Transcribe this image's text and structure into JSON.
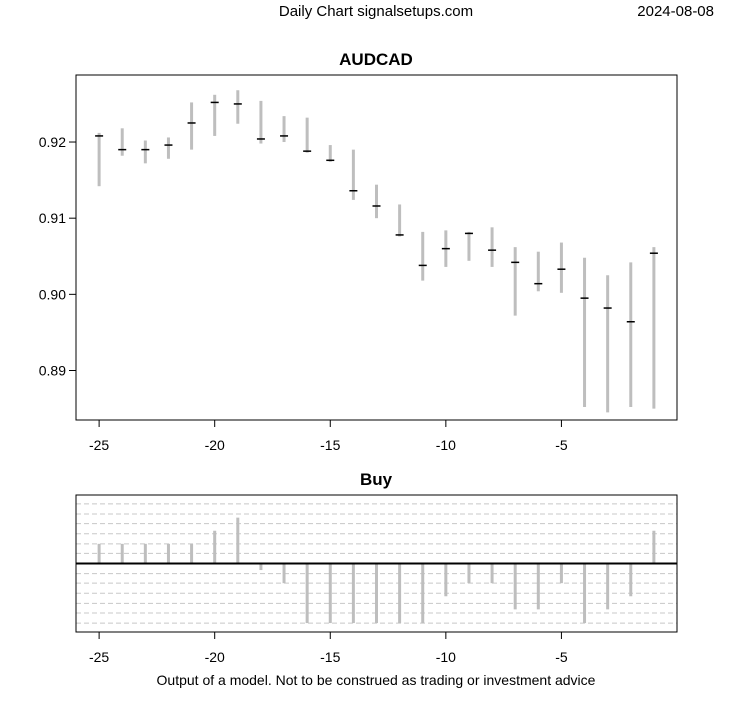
{
  "header": {
    "left": "Daily Chart signalsetups.com",
    "right": "2024-08-08"
  },
  "footer": "Output of a model. Not to be construed as trading or investment advice",
  "colors": {
    "bar": "#bebebe",
    "mark": "#000000",
    "grid": "#c8c8c8"
  },
  "chart_data": [
    {
      "type": "ohlc",
      "title": "AUDCAD",
      "xlim": [
        -26,
        0
      ],
      "ylim": [
        0.8835,
        0.9288
      ],
      "x_ticks": [
        -25,
        -20,
        -15,
        -10,
        -5
      ],
      "x_tick_labels": [
        "-25",
        "-20",
        "-15",
        "-10",
        "-5"
      ],
      "y_ticks": [
        0.89,
        0.9,
        0.91,
        0.92
      ],
      "y_tick_labels": [
        "0.89",
        "0.90",
        "0.91",
        "0.92"
      ],
      "x": [
        -25,
        -24,
        -23,
        -22,
        -21,
        -20,
        -19,
        -18,
        -17,
        -16,
        -15,
        -14,
        -13,
        -12,
        -11,
        -10,
        -9,
        -8,
        -7,
        -6,
        -5,
        -4,
        -3,
        -2,
        -1
      ],
      "high": [
        0.9212,
        0.9218,
        0.9202,
        0.9206,
        0.9252,
        0.9262,
        0.9268,
        0.9254,
        0.9234,
        0.9232,
        0.9196,
        0.919,
        0.9144,
        0.9118,
        0.9082,
        0.9084,
        0.9082,
        0.9088,
        0.9062,
        0.9056,
        0.9068,
        0.9048,
        0.9025,
        0.9042,
        0.9062
      ],
      "low": [
        0.9142,
        0.9182,
        0.9172,
        0.9178,
        0.919,
        0.9208,
        0.9224,
        0.9198,
        0.92,
        0.9186,
        0.9174,
        0.9124,
        0.91,
        0.9076,
        0.9018,
        0.9036,
        0.9044,
        0.9036,
        0.8972,
        0.9004,
        0.9002,
        0.8852,
        0.8845,
        0.8852,
        0.885
      ],
      "close": [
        0.9208,
        0.919,
        0.919,
        0.9196,
        0.9225,
        0.9252,
        0.925,
        0.9204,
        0.9208,
        0.9188,
        0.9176,
        0.9136,
        0.9116,
        0.9078,
        0.9038,
        0.906,
        0.908,
        0.9058,
        0.9042,
        0.9014,
        0.9033,
        0.8995,
        0.8982,
        0.8964,
        0.9054
      ]
    },
    {
      "type": "bar",
      "title": "Buy",
      "xlim": [
        -26,
        0
      ],
      "ylim": [
        -1.15,
        1.15
      ],
      "x_ticks": [
        -25,
        -20,
        -15,
        -10,
        -5
      ],
      "x_tick_labels": [
        "-25",
        "-20",
        "-15",
        "-10",
        "-5"
      ],
      "x": [
        -25,
        -24,
        -23,
        -22,
        -21,
        -20,
        -19,
        -18,
        -17,
        -16,
        -15,
        -14,
        -13,
        -12,
        -11,
        -10,
        -9,
        -8,
        -7,
        -6,
        -5,
        -4,
        -3,
        -2,
        -1
      ],
      "values": [
        0.33,
        0.33,
        0.33,
        0.33,
        0.33,
        0.55,
        0.77,
        -0.11,
        -0.33,
        -1.0,
        -1.0,
        -1.0,
        -1.0,
        -1.0,
        -1.0,
        -0.55,
        -0.33,
        -0.33,
        -0.77,
        -0.77,
        -0.33,
        -1.0,
        -0.77,
        -0.55,
        0.55
      ],
      "gridlines": [
        -1.0,
        -0.83,
        -0.67,
        -0.5,
        -0.33,
        -0.17,
        0.17,
        0.33,
        0.5,
        0.67,
        0.83,
        1.0
      ]
    }
  ]
}
